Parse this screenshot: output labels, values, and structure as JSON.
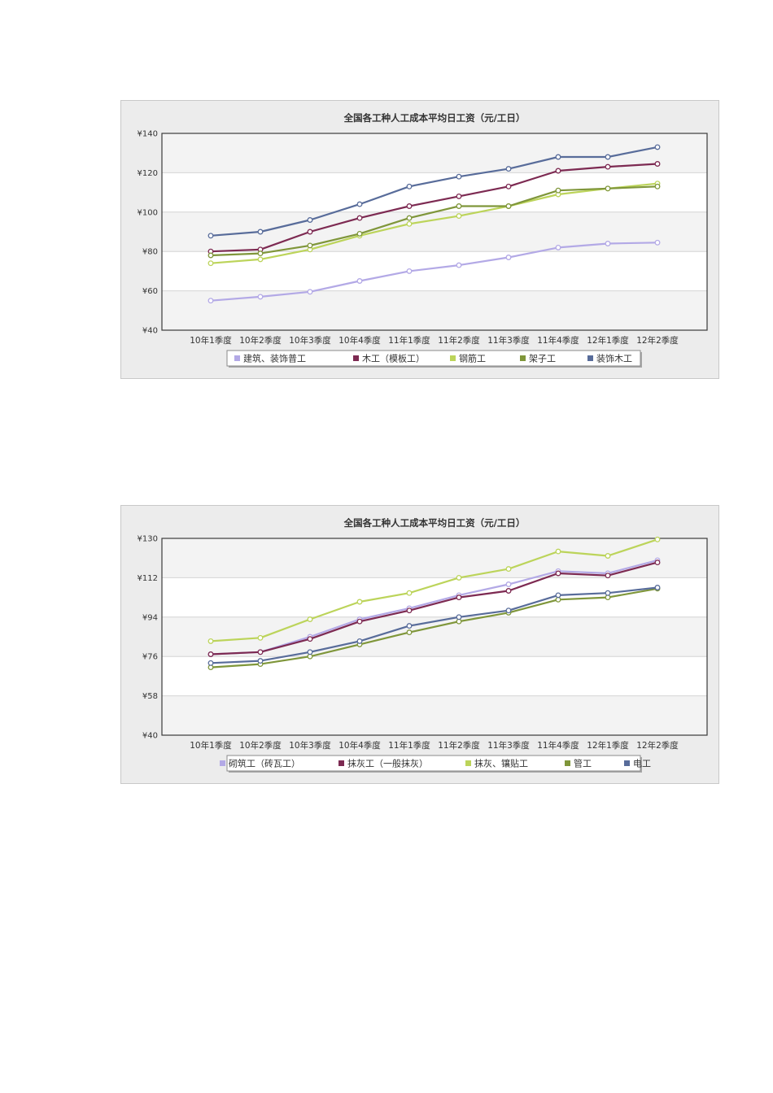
{
  "charts": [
    {
      "legend_colors": [
        "#b3a9e6",
        "#7d2a52",
        "#bcd45a",
        "#7f963a",
        "#586c9a"
      ],
      "chart_data": {
        "type": "line",
        "title": "全国各工种人工成本平均日工资（元/工日）",
        "xlabel": "",
        "ylabel": "",
        "categories": [
          "10年1季度",
          "10年2季度",
          "10年3季度",
          "10年4季度",
          "11年1季度",
          "11年2季度",
          "11年3季度",
          "11年4季度",
          "12年1季度",
          "12年2季度"
        ],
        "ylim": [
          40,
          140
        ],
        "yticks": [
          40,
          60,
          80,
          100,
          120,
          140
        ],
        "ytick_labels": [
          "¥40",
          "¥60",
          "¥80",
          "¥100",
          "¥120",
          "¥140"
        ],
        "grid": true,
        "legend_position": "bottom",
        "series": [
          {
            "name": "建筑、装饰普工",
            "color": "#b3a9e6",
            "values": [
              55,
              57,
              59.5,
              65,
              70,
              73,
              77,
              82,
              84,
              84.5
            ]
          },
          {
            "name": "木工（模板工）",
            "color": "#7d2a52",
            "values": [
              80,
              81,
              90,
              97,
              103,
              108,
              113,
              121,
              123,
              124.5
            ]
          },
          {
            "name": "钢筋工",
            "color": "#bcd45a",
            "values": [
              74,
              76,
              81,
              88,
              94,
              98,
              103,
              109,
              112,
              114.5
            ]
          },
          {
            "name": "架子工",
            "color": "#7f963a",
            "values": [
              78,
              79,
              83,
              89,
              97,
              103,
              103,
              111,
              112,
              113
            ]
          },
          {
            "name": "装饰木工",
            "color": "#586c9a",
            "values": [
              88,
              90,
              96,
              104,
              113,
              118,
              122,
              128,
              128,
              133
            ]
          }
        ]
      }
    },
    {
      "legend_colors": [
        "#b3a9e6",
        "#7d2a52",
        "#bcd45a",
        "#7f963a",
        "#586c9a"
      ],
      "chart_data": {
        "type": "line",
        "title": "全国各工种人工成本平均日工资（元/工日）",
        "xlabel": "",
        "ylabel": "",
        "categories": [
          "10年1季度",
          "10年2季度",
          "10年3季度",
          "10年4季度",
          "11年1季度",
          "11年2季度",
          "11年3季度",
          "11年4季度",
          "12年1季度",
          "12年2季度"
        ],
        "ylim": [
          40,
          130
        ],
        "yticks": [
          40,
          58,
          76,
          94,
          112,
          130
        ],
        "ytick_labels": [
          "¥40",
          "¥58",
          "¥76",
          "¥94",
          "¥112",
          "¥130"
        ],
        "grid": true,
        "legend_position": "bottom",
        "series": [
          {
            "name": "砌筑工（砖瓦工）",
            "color": "#b3a9e6",
            "values": [
              77,
              78,
              85,
              93,
              98,
              104,
              109,
              115,
              114,
              120
            ]
          },
          {
            "name": "抹灰工（一般抹灰）",
            "color": "#7d2a52",
            "values": [
              77,
              78,
              84,
              92,
              97,
              103,
              106,
              114,
              113,
              119
            ]
          },
          {
            "name": "抹灰、镶贴工",
            "color": "#bcd45a",
            "values": [
              83,
              84.5,
              93,
              101,
              105,
              112,
              116,
              124,
              122,
              129.5
            ]
          },
          {
            "name": "管工",
            "color": "#7f963a",
            "values": [
              71,
              72.5,
              76,
              81.5,
              87,
              92,
              96,
              102,
              103,
              107
            ]
          },
          {
            "name": "电工",
            "color": "#586c9a",
            "values": [
              73,
              74,
              78,
              83,
              90,
              94,
              97,
              104,
              105,
              107.5
            ]
          }
        ]
      }
    }
  ]
}
